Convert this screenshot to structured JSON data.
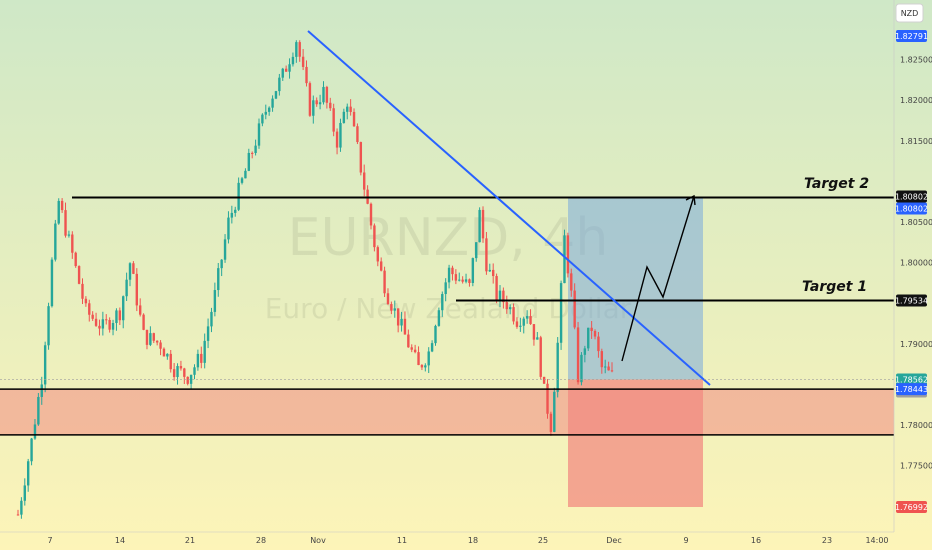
{
  "chart_data": {
    "type": "candlestick",
    "symbol": "EURNZD, 4h",
    "description": "Euro / New Zealand Dollar",
    "currency_badge": "NZD",
    "ylim": [
      1.7685,
      1.83
    ],
    "x_ticks": [
      "7",
      "14",
      "21",
      "28",
      "Nov",
      "11",
      "18",
      "25",
      "Dec",
      "9",
      "16",
      "23",
      "14:00"
    ],
    "y_ticks": [
      "1.82500",
      "1.82000",
      "1.81500",
      "1.80500",
      "1.80000",
      "1.79000",
      "1.78000",
      "1.77500"
    ],
    "price_labels": [
      {
        "value": 1.82791,
        "text": "1.82791",
        "bg": "#2962ff",
        "fg": "#ffffff"
      },
      {
        "value": 1.80802,
        "text": "1.80802",
        "bg": "#111111",
        "fg": "#ffffff"
      },
      {
        "value": 1.80802,
        "text": "1.80802",
        "bg": "#2962ff",
        "fg": "#ffffff"
      },
      {
        "value": 1.79534,
        "text": "1.79534",
        "bg": "#111111",
        "fg": "#ffffff"
      },
      {
        "value": 1.78562,
        "text": "1.78562",
        "bg": "#26a69a",
        "fg": "#ffffff"
      },
      {
        "value": 1.78562,
        "text": "1.78562",
        "bg": "#9e9e9e",
        "fg": "#ffffff"
      },
      {
        "value": 1.78443,
        "text": "1.78443",
        "bg": "#2962ff",
        "fg": "#ffffff"
      },
      {
        "value": 1.76992,
        "text": "1.76992",
        "bg": "#ef5350",
        "fg": "#ffffff"
      }
    ],
    "annotations": {
      "target1": {
        "label": "Target 1",
        "price": 1.79534
      },
      "target2": {
        "label": "Target 2",
        "price": 1.80802
      },
      "support_zone": {
        "top": 1.78443,
        "bottom": 1.7788
      },
      "trendline": [
        {
          "x": 0.1,
          "price": 1.8275
        },
        {
          "x": 0.9,
          "price": 1.785
        }
      ],
      "position_entry": 1.78562,
      "position_stop": 1.76992
    },
    "candles_path": [
      [
        0,
        1.769
      ],
      [
        4,
        1.778
      ],
      [
        7,
        1.786
      ],
      [
        10,
        1.8
      ],
      [
        12,
        1.8075
      ],
      [
        16,
        1.801
      ],
      [
        20,
        1.794
      ],
      [
        25,
        1.792
      ],
      [
        30,
        1.794
      ],
      [
        33,
        1.8
      ],
      [
        37,
        1.791
      ],
      [
        42,
        1.79
      ],
      [
        46,
        1.787
      ],
      [
        50,
        1.786
      ],
      [
        54,
        1.7885
      ],
      [
        58,
        1.796
      ],
      [
        62,
        1.805
      ],
      [
        66,
        1.81
      ],
      [
        70,
        1.815
      ],
      [
        74,
        1.82
      ],
      [
        78,
        1.823
      ],
      [
        82,
        1.8275
      ],
      [
        86,
        1.819
      ],
      [
        90,
        1.821
      ],
      [
        94,
        1.815
      ],
      [
        97,
        1.82
      ],
      [
        100,
        1.814
      ],
      [
        103,
        1.807
      ],
      [
        106,
        1.8
      ],
      [
        109,
        1.796
      ],
      [
        112,
        1.793
      ],
      [
        115,
        1.79
      ],
      [
        118,
        1.787
      ],
      [
        121,
        1.789
      ],
      [
        124,
        1.795
      ],
      [
        127,
        1.799
      ],
      [
        130,
        1.798
      ],
      [
        133,
        1.797
      ],
      [
        136,
        1.806
      ],
      [
        138,
        1.8
      ],
      [
        141,
        1.796
      ],
      [
        144,
        1.795
      ],
      [
        147,
        1.793
      ],
      [
        150,
        1.794
      ],
      [
        153,
        1.79
      ],
      [
        155,
        1.784
      ],
      [
        157,
        1.78
      ],
      [
        159,
        1.79
      ],
      [
        161,
        1.803
      ],
      [
        163,
        1.796
      ],
      [
        165,
        1.786
      ],
      [
        167,
        1.79
      ],
      [
        169,
        1.792
      ],
      [
        172,
        1.787
      ],
      [
        175,
        1.786
      ]
    ]
  }
}
